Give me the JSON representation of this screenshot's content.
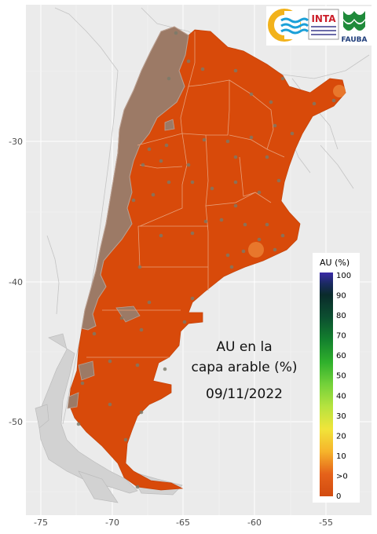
{
  "map": {
    "title_line1": "AU en la",
    "title_line2": "capa arable (%)",
    "date": "09/11/2022",
    "x_ticks": [
      "-75",
      "-70",
      "-65",
      "-60",
      "-55"
    ],
    "y_ticks": [
      "-30",
      "-40",
      "-50"
    ]
  },
  "legend": {
    "title": "AU (%)",
    "labels": [
      "100",
      "90",
      "80",
      "70",
      "60",
      "50",
      "40",
      "30",
      "20",
      "10",
      ">0",
      "0"
    ],
    "colors": [
      "#3a2aa8",
      "#0a2b2b",
      "#0c4f30",
      "#13802e",
      "#2fb02c",
      "#74d13a",
      "#b7e33f",
      "#f1e43a",
      "#f6b42b",
      "#f08a22",
      "#e5621a",
      "#d24b10"
    ]
  },
  "logos": {
    "inta": "INTA",
    "fauba": "FAUBA"
  },
  "colors": {
    "panel": "#ebebeb",
    "grid": "#ffffff",
    "land_argentina": "#d84a0a",
    "andes": "#9c7a66",
    "neighbor_outline": "#bfbfbf"
  }
}
